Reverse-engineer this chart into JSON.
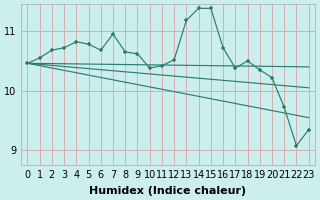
{
  "xlabel": "Humidex (Indice chaleur)",
  "bg_color": "#cceeed",
  "grid_color": "#d4b0b0",
  "line_color": "#2a7d72",
  "xlim": [
    -0.5,
    23.5
  ],
  "ylim": [
    8.75,
    11.45
  ],
  "yticks": [
    9,
    10,
    11
  ],
  "xticks": [
    0,
    1,
    2,
    3,
    4,
    5,
    6,
    7,
    8,
    9,
    10,
    11,
    12,
    13,
    14,
    15,
    16,
    17,
    18,
    19,
    20,
    21,
    22,
    23
  ],
  "main_data_x": [
    0,
    1,
    2,
    3,
    4,
    5,
    6,
    7,
    8,
    9,
    10,
    11,
    12,
    13,
    14,
    15,
    16,
    17,
    18,
    19,
    20,
    21,
    22,
    23
  ],
  "main_data_y": [
    10.46,
    10.55,
    10.68,
    10.72,
    10.82,
    10.78,
    10.68,
    10.95,
    10.65,
    10.62,
    10.38,
    10.42,
    10.52,
    11.18,
    11.38,
    11.38,
    10.72,
    10.38,
    10.5,
    10.35,
    10.22,
    9.72,
    9.08,
    9.35
  ],
  "line1_x": [
    0,
    23
  ],
  "line1_y": [
    10.46,
    10.4
  ],
  "line2_x": [
    0,
    23
  ],
  "line2_y": [
    10.46,
    10.05
  ],
  "line3_x": [
    0,
    23
  ],
  "line3_y": [
    10.46,
    9.55
  ],
  "tick_fontsize": 7,
  "label_fontsize": 8
}
